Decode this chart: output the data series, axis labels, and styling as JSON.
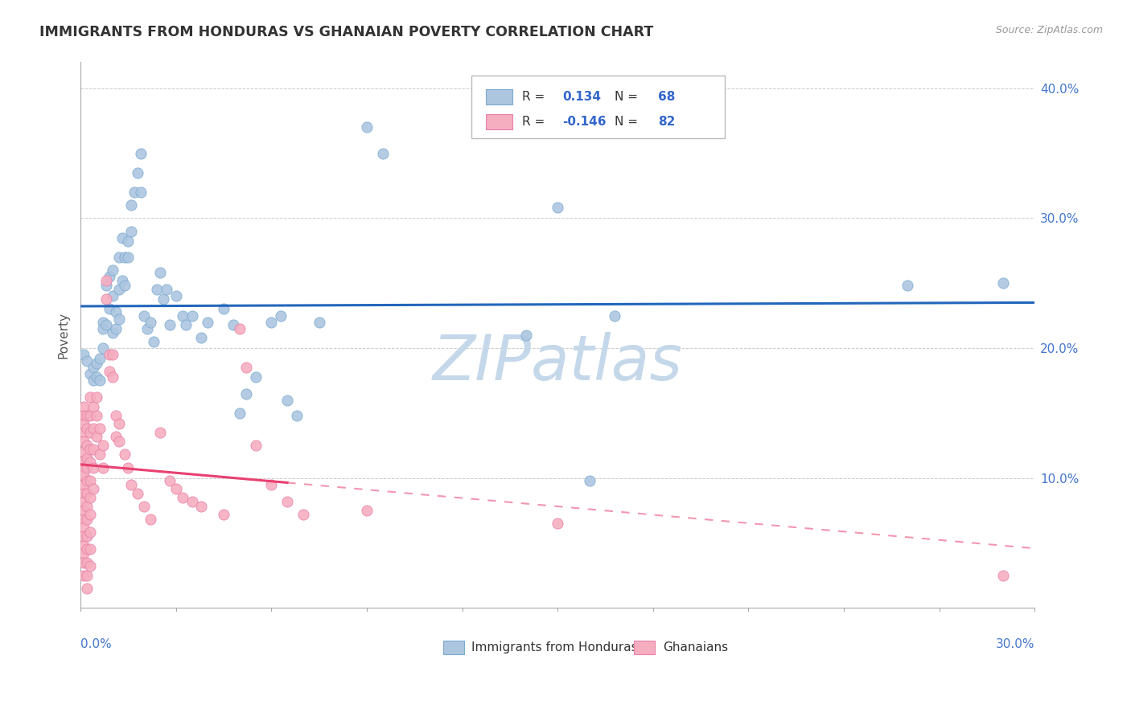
{
  "title": "IMMIGRANTS FROM HONDURAS VS GHANAIAN POVERTY CORRELATION CHART",
  "source": "Source: ZipAtlas.com",
  "ylabel": "Poverty",
  "yticks": [
    0.0,
    0.1,
    0.2,
    0.3,
    0.4
  ],
  "ytick_labels": [
    "",
    "10.0%",
    "20.0%",
    "30.0%",
    "40.0%"
  ],
  "xlim": [
    0.0,
    0.3
  ],
  "ylim": [
    0.0,
    0.42
  ],
  "blue_color": "#adc6e0",
  "pink_color": "#f5aec0",
  "blue_edge_color": "#7aaad0",
  "pink_edge_color": "#e880a8",
  "blue_line_color": "#2266bb",
  "pink_line_color": "#e84070",
  "blue_scatter": [
    [
      0.001,
      0.195
    ],
    [
      0.002,
      0.19
    ],
    [
      0.003,
      0.18
    ],
    [
      0.004,
      0.185
    ],
    [
      0.004,
      0.175
    ],
    [
      0.005,
      0.188
    ],
    [
      0.005,
      0.178
    ],
    [
      0.006,
      0.192
    ],
    [
      0.006,
      0.175
    ],
    [
      0.007,
      0.22
    ],
    [
      0.007,
      0.215
    ],
    [
      0.007,
      0.2
    ],
    [
      0.008,
      0.248
    ],
    [
      0.008,
      0.218
    ],
    [
      0.009,
      0.255
    ],
    [
      0.009,
      0.23
    ],
    [
      0.01,
      0.26
    ],
    [
      0.01,
      0.24
    ],
    [
      0.01,
      0.212
    ],
    [
      0.011,
      0.228
    ],
    [
      0.011,
      0.215
    ],
    [
      0.012,
      0.27
    ],
    [
      0.012,
      0.245
    ],
    [
      0.012,
      0.222
    ],
    [
      0.013,
      0.285
    ],
    [
      0.013,
      0.252
    ],
    [
      0.014,
      0.27
    ],
    [
      0.014,
      0.248
    ],
    [
      0.015,
      0.282
    ],
    [
      0.015,
      0.27
    ],
    [
      0.016,
      0.31
    ],
    [
      0.016,
      0.29
    ],
    [
      0.017,
      0.32
    ],
    [
      0.018,
      0.335
    ],
    [
      0.019,
      0.35
    ],
    [
      0.019,
      0.32
    ],
    [
      0.02,
      0.225
    ],
    [
      0.021,
      0.215
    ],
    [
      0.022,
      0.22
    ],
    [
      0.023,
      0.205
    ],
    [
      0.024,
      0.245
    ],
    [
      0.025,
      0.258
    ],
    [
      0.026,
      0.238
    ],
    [
      0.027,
      0.245
    ],
    [
      0.028,
      0.218
    ],
    [
      0.03,
      0.24
    ],
    [
      0.032,
      0.225
    ],
    [
      0.033,
      0.218
    ],
    [
      0.035,
      0.225
    ],
    [
      0.038,
      0.208
    ],
    [
      0.04,
      0.22
    ],
    [
      0.045,
      0.23
    ],
    [
      0.048,
      0.218
    ],
    [
      0.05,
      0.15
    ],
    [
      0.052,
      0.165
    ],
    [
      0.055,
      0.178
    ],
    [
      0.06,
      0.22
    ],
    [
      0.063,
      0.225
    ],
    [
      0.065,
      0.16
    ],
    [
      0.068,
      0.148
    ],
    [
      0.075,
      0.22
    ],
    [
      0.09,
      0.37
    ],
    [
      0.095,
      0.35
    ],
    [
      0.14,
      0.21
    ],
    [
      0.15,
      0.308
    ],
    [
      0.16,
      0.098
    ],
    [
      0.168,
      0.225
    ],
    [
      0.26,
      0.248
    ],
    [
      0.29,
      0.25
    ]
  ],
  "pink_scatter": [
    [
      0.001,
      0.155
    ],
    [
      0.001,
      0.148
    ],
    [
      0.001,
      0.142
    ],
    [
      0.001,
      0.135
    ],
    [
      0.001,
      0.128
    ],
    [
      0.001,
      0.12
    ],
    [
      0.001,
      0.113
    ],
    [
      0.001,
      0.108
    ],
    [
      0.001,
      0.102
    ],
    [
      0.001,
      0.095
    ],
    [
      0.001,
      0.088
    ],
    [
      0.001,
      0.082
    ],
    [
      0.001,
      0.075
    ],
    [
      0.001,
      0.068
    ],
    [
      0.001,
      0.062
    ],
    [
      0.001,
      0.055
    ],
    [
      0.001,
      0.048
    ],
    [
      0.001,
      0.042
    ],
    [
      0.001,
      0.035
    ],
    [
      0.001,
      0.025
    ],
    [
      0.002,
      0.148
    ],
    [
      0.002,
      0.138
    ],
    [
      0.002,
      0.125
    ],
    [
      0.002,
      0.115
    ],
    [
      0.002,
      0.108
    ],
    [
      0.002,
      0.098
    ],
    [
      0.002,
      0.088
    ],
    [
      0.002,
      0.078
    ],
    [
      0.002,
      0.068
    ],
    [
      0.002,
      0.055
    ],
    [
      0.002,
      0.045
    ],
    [
      0.002,
      0.035
    ],
    [
      0.002,
      0.025
    ],
    [
      0.002,
      0.015
    ],
    [
      0.003,
      0.162
    ],
    [
      0.003,
      0.148
    ],
    [
      0.003,
      0.135
    ],
    [
      0.003,
      0.122
    ],
    [
      0.003,
      0.112
    ],
    [
      0.003,
      0.098
    ],
    [
      0.003,
      0.085
    ],
    [
      0.003,
      0.072
    ],
    [
      0.003,
      0.058
    ],
    [
      0.003,
      0.045
    ],
    [
      0.003,
      0.032
    ],
    [
      0.004,
      0.155
    ],
    [
      0.004,
      0.138
    ],
    [
      0.004,
      0.122
    ],
    [
      0.004,
      0.108
    ],
    [
      0.004,
      0.092
    ],
    [
      0.005,
      0.162
    ],
    [
      0.005,
      0.148
    ],
    [
      0.005,
      0.132
    ],
    [
      0.006,
      0.138
    ],
    [
      0.006,
      0.118
    ],
    [
      0.007,
      0.125
    ],
    [
      0.007,
      0.108
    ],
    [
      0.008,
      0.252
    ],
    [
      0.008,
      0.238
    ],
    [
      0.009,
      0.195
    ],
    [
      0.009,
      0.182
    ],
    [
      0.01,
      0.195
    ],
    [
      0.01,
      0.178
    ],
    [
      0.011,
      0.148
    ],
    [
      0.011,
      0.132
    ],
    [
      0.012,
      0.142
    ],
    [
      0.012,
      0.128
    ],
    [
      0.014,
      0.118
    ],
    [
      0.015,
      0.108
    ],
    [
      0.016,
      0.095
    ],
    [
      0.018,
      0.088
    ],
    [
      0.02,
      0.078
    ],
    [
      0.022,
      0.068
    ],
    [
      0.025,
      0.135
    ],
    [
      0.028,
      0.098
    ],
    [
      0.03,
      0.092
    ],
    [
      0.032,
      0.085
    ],
    [
      0.035,
      0.082
    ],
    [
      0.038,
      0.078
    ],
    [
      0.045,
      0.072
    ],
    [
      0.05,
      0.215
    ],
    [
      0.052,
      0.185
    ],
    [
      0.055,
      0.125
    ],
    [
      0.06,
      0.095
    ],
    [
      0.065,
      0.082
    ],
    [
      0.07,
      0.072
    ],
    [
      0.09,
      0.075
    ],
    [
      0.15,
      0.065
    ],
    [
      0.29,
      0.025
    ]
  ],
  "background_color": "#ffffff",
  "grid_color": "#cccccc",
  "watermark": "ZIPatlas",
  "watermark_color": "#c5d8ea",
  "pink_line_solid_end": 0.065,
  "pink_line_x_start": 0.0,
  "pink_line_x_end": 0.3,
  "blue_line_x_start": 0.0,
  "blue_line_x_end": 0.3
}
